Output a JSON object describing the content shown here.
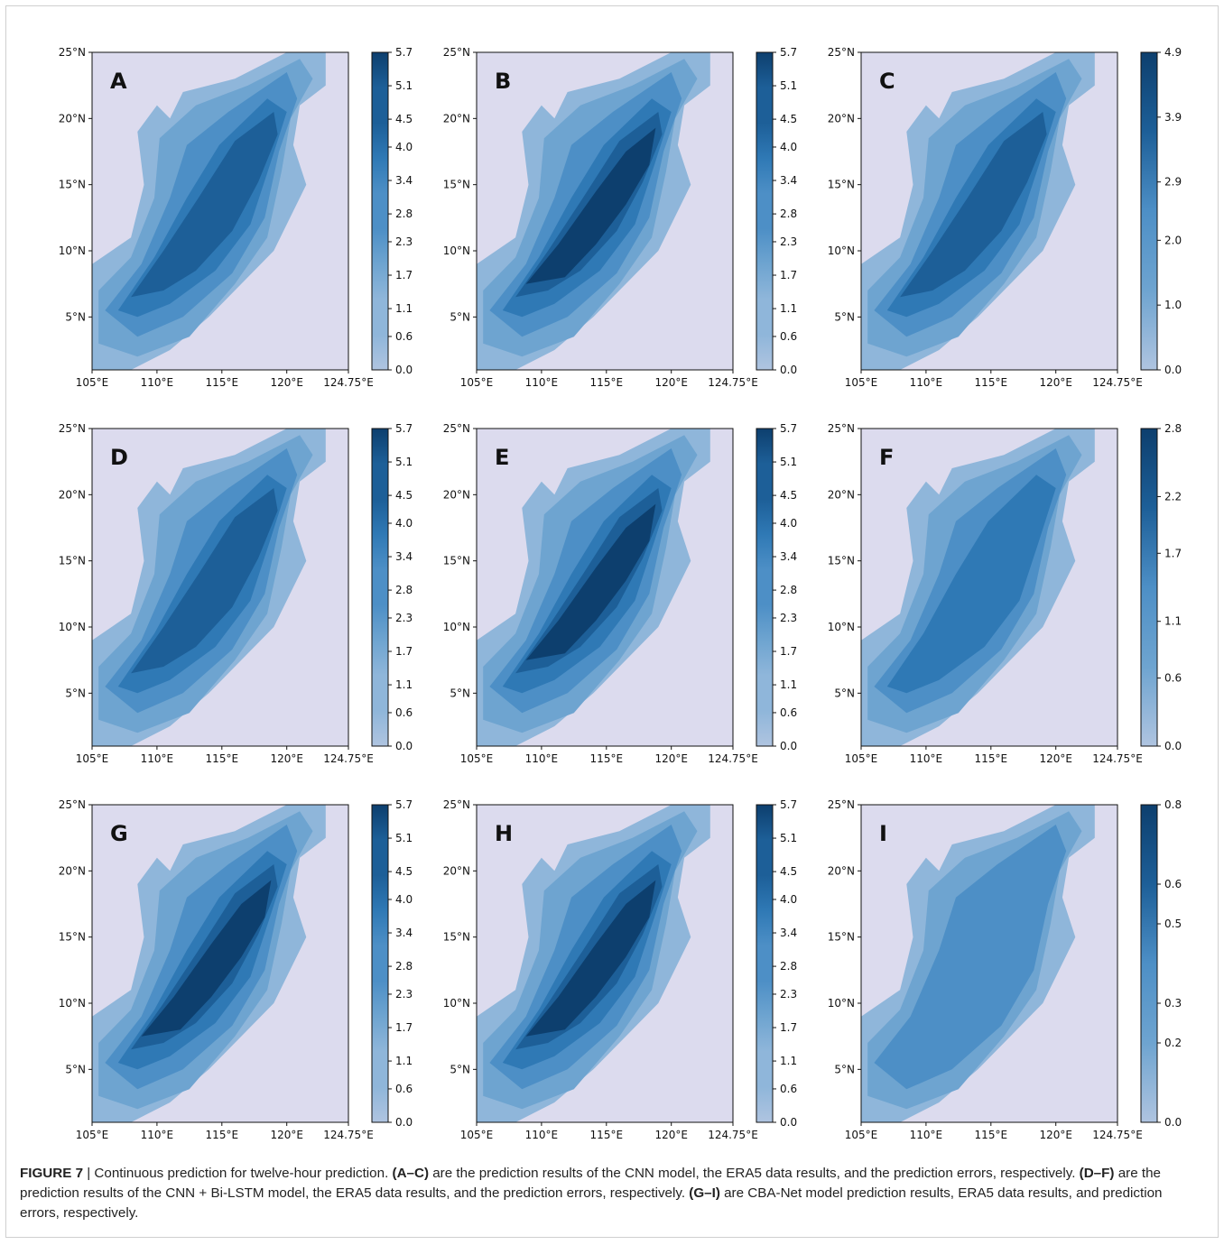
{
  "chart_data": [
    {
      "panel": "A",
      "type": "heatmap",
      "subtitle": "A",
      "xlabel": "",
      "ylabel": "",
      "x_ticks": [
        "105°E",
        "110°E",
        "115°E",
        "120°E",
        "124.75°E"
      ],
      "x_values": [
        105,
        110,
        115,
        120,
        124.75
      ],
      "xlim": [
        105,
        124.75
      ],
      "y_ticks": [
        "5°N",
        "10°N",
        "15°N",
        "20°N",
        "25°N"
      ],
      "y_values": [
        5,
        10,
        15,
        20,
        25
      ],
      "ylim": [
        1,
        25
      ],
      "colorbar_ticks": [
        "0.0",
        "0.6",
        "1.1",
        "1.7",
        "2.3",
        "2.8",
        "3.4",
        "4.0",
        "4.5",
        "5.1",
        "5.7"
      ],
      "colorbar_range": [
        0,
        5.7
      ],
      "levels": [
        0.0,
        0.6,
        1.1,
        1.7,
        2.3
      ],
      "colormap": "Blues"
    },
    {
      "panel": "B",
      "type": "heatmap",
      "subtitle": "B",
      "xlabel": "",
      "ylabel": "",
      "x_ticks": [
        "105°E",
        "110°E",
        "115°E",
        "120°E",
        "124.75°E"
      ],
      "x_values": [
        105,
        110,
        115,
        120,
        124.75
      ],
      "xlim": [
        105,
        124.75
      ],
      "y_ticks": [
        "5°N",
        "10°N",
        "15°N",
        "20°N",
        "25°N"
      ],
      "y_values": [
        5,
        10,
        15,
        20,
        25
      ],
      "ylim": [
        1,
        25
      ],
      "colorbar_ticks": [
        "0.0",
        "0.6",
        "1.1",
        "1.7",
        "2.3",
        "2.8",
        "3.4",
        "4.0",
        "4.5",
        "5.1",
        "5.7"
      ],
      "colorbar_range": [
        0,
        5.7
      ],
      "levels": [
        0.0,
        1.1,
        2.3,
        3.4,
        4.0,
        4.5
      ],
      "colormap": "Blues"
    },
    {
      "panel": "C",
      "type": "heatmap",
      "subtitle": "C",
      "xlabel": "",
      "ylabel": "",
      "x_ticks": [
        "105°E",
        "110°E",
        "115°E",
        "120°E",
        "124.75°E"
      ],
      "x_values": [
        105,
        110,
        115,
        120,
        124.75
      ],
      "xlim": [
        105,
        124.75
      ],
      "y_ticks": [
        "5°N",
        "10°N",
        "15°N",
        "20°N",
        "25°N"
      ],
      "y_values": [
        5,
        10,
        15,
        20,
        25
      ],
      "ylim": [
        1,
        25
      ],
      "colorbar_ticks": [
        "0.0",
        "1.0",
        "2.0",
        "2.9",
        "3.9",
        "4.9"
      ],
      "colorbar_range": [
        0,
        4.9
      ],
      "levels": [
        0.0,
        1.0,
        2.0,
        2.9,
        3.9
      ],
      "colormap": "Blues"
    },
    {
      "panel": "D",
      "type": "heatmap",
      "subtitle": "D",
      "xlabel": "",
      "ylabel": "",
      "x_ticks": [
        "105°E",
        "110°E",
        "115°E",
        "120°E",
        "124.75°E"
      ],
      "x_values": [
        105,
        110,
        115,
        120,
        124.75
      ],
      "xlim": [
        105,
        124.75
      ],
      "y_ticks": [
        "5°N",
        "10°N",
        "15°N",
        "20°N",
        "25°N"
      ],
      "y_values": [
        5,
        10,
        15,
        20,
        25
      ],
      "ylim": [
        1,
        25
      ],
      "colorbar_ticks": [
        "0.0",
        "0.6",
        "1.1",
        "1.7",
        "2.3",
        "2.8",
        "3.4",
        "4.0",
        "4.5",
        "5.1",
        "5.7"
      ],
      "colorbar_range": [
        0,
        5.7
      ],
      "levels": [
        0.0,
        1.1,
        2.3,
        2.8,
        3.4
      ],
      "colormap": "Blues"
    },
    {
      "panel": "E",
      "type": "heatmap",
      "subtitle": "E",
      "xlabel": "",
      "ylabel": "",
      "x_ticks": [
        "105°E",
        "110°E",
        "115°E",
        "120°E",
        "124.75°E"
      ],
      "x_values": [
        105,
        110,
        115,
        120,
        124.75
      ],
      "xlim": [
        105,
        124.75
      ],
      "y_ticks": [
        "5°N",
        "10°N",
        "15°N",
        "20°N",
        "25°N"
      ],
      "y_values": [
        5,
        10,
        15,
        20,
        25
      ],
      "ylim": [
        1,
        25
      ],
      "colorbar_ticks": [
        "0.0",
        "0.6",
        "1.1",
        "1.7",
        "2.3",
        "2.8",
        "3.4",
        "4.0",
        "4.5",
        "5.1",
        "5.7"
      ],
      "colorbar_range": [
        0,
        5.7
      ],
      "levels": [
        0.0,
        1.1,
        2.3,
        3.4,
        4.0,
        4.5
      ],
      "colormap": "Blues"
    },
    {
      "panel": "F",
      "type": "heatmap",
      "subtitle": "F",
      "xlabel": "",
      "ylabel": "",
      "x_ticks": [
        "105°E",
        "110°E",
        "115°E",
        "120°E",
        "124.75°E"
      ],
      "x_values": [
        105,
        110,
        115,
        120,
        124.75
      ],
      "xlim": [
        105,
        124.75
      ],
      "y_ticks": [
        "5°N",
        "10°N",
        "15°N",
        "20°N",
        "25°N"
      ],
      "y_values": [
        5,
        10,
        15,
        20,
        25
      ],
      "ylim": [
        1,
        25
      ],
      "colorbar_ticks": [
        "0.0",
        "0.6",
        "1.1",
        "1.7",
        "2.2",
        "2.8"
      ],
      "colorbar_range": [
        0,
        2.8
      ],
      "levels": [
        0.0,
        0.6,
        1.1,
        1.7
      ],
      "colormap": "Blues"
    },
    {
      "panel": "G",
      "type": "heatmap",
      "subtitle": "G",
      "xlabel": "",
      "ylabel": "",
      "x_ticks": [
        "105°E",
        "110°E",
        "115°E",
        "120°E",
        "124.75°E"
      ],
      "x_values": [
        105,
        110,
        115,
        120,
        124.75
      ],
      "xlim": [
        105,
        124.75
      ],
      "y_ticks": [
        "5°N",
        "10°N",
        "15°N",
        "20°N",
        "25°N"
      ],
      "y_values": [
        5,
        10,
        15,
        20,
        25
      ],
      "ylim": [
        1,
        25
      ],
      "colorbar_ticks": [
        "0.0",
        "0.6",
        "1.1",
        "1.7",
        "2.3",
        "2.8",
        "3.4",
        "4.0",
        "4.5",
        "5.1",
        "5.7"
      ],
      "colorbar_range": [
        0,
        5.7
      ],
      "levels": [
        0.0,
        1.1,
        2.3,
        3.4,
        4.0,
        4.5
      ],
      "colormap": "Blues"
    },
    {
      "panel": "H",
      "type": "heatmap",
      "subtitle": "H",
      "xlabel": "",
      "ylabel": "",
      "x_ticks": [
        "105°E",
        "110°E",
        "115°E",
        "120°E",
        "124.75°E"
      ],
      "x_values": [
        105,
        110,
        115,
        120,
        124.75
      ],
      "xlim": [
        105,
        124.75
      ],
      "y_ticks": [
        "5°N",
        "10°N",
        "15°N",
        "20°N",
        "25°N"
      ],
      "y_values": [
        5,
        10,
        15,
        20,
        25
      ],
      "ylim": [
        1,
        25
      ],
      "colorbar_ticks": [
        "0.0",
        "0.6",
        "1.1",
        "1.7",
        "2.3",
        "2.8",
        "3.4",
        "4.0",
        "4.5",
        "5.1",
        "5.7"
      ],
      "colorbar_range": [
        0,
        5.7
      ],
      "levels": [
        0.0,
        1.1,
        2.3,
        3.4,
        4.0,
        4.5
      ],
      "colormap": "Blues"
    },
    {
      "panel": "I",
      "type": "heatmap",
      "subtitle": "I",
      "xlabel": "",
      "ylabel": "",
      "x_ticks": [
        "105°E",
        "110°E",
        "115°E",
        "120°E",
        "124.75°E"
      ],
      "x_values": [
        105,
        110,
        115,
        120,
        124.75
      ],
      "xlim": [
        105,
        124.75
      ],
      "y_ticks": [
        "5°N",
        "10°N",
        "15°N",
        "20°N",
        "25°N"
      ],
      "y_values": [
        5,
        10,
        15,
        20,
        25
      ],
      "ylim": [
        1,
        25
      ],
      "colorbar_ticks": [
        "0.0",
        "0.2",
        "0.3",
        "0.5",
        "0.6",
        "0.8"
      ],
      "colorbar_range": [
        0,
        0.8
      ],
      "levels": [
        0.0,
        0.2,
        0.5
      ],
      "colormap": "Blues"
    }
  ],
  "caption": {
    "label": "FIGURE 7",
    "title": " | Continuous prediction for twelve-hour prediction. ",
    "p1_bold": "(A–C)",
    "p1_text": " are the prediction results of the CNN model, the ERA5 data results, and the prediction errors, respectively. ",
    "p2_bold": "(D–F)",
    "p2_text": " are the prediction results of the CNN + Bi-LSTM model, the ERA5 data results, and the prediction errors, respectively. ",
    "p3_bold": "(G–I)",
    "p3_text": " are CBA-Net model prediction results, ERA5 data results, and prediction errors, respectively."
  },
  "colors": {
    "land": "#dcdbee",
    "level_0": "#d9d8ec",
    "level_1": "#afc4e0",
    "level_2": "#8fb6da",
    "level_3": "#6ea4d0",
    "level_4": "#4d8fc6",
    "level_5": "#2f79b5",
    "level_6": "#1d5f98",
    "level_7": "#0d3f6e"
  }
}
